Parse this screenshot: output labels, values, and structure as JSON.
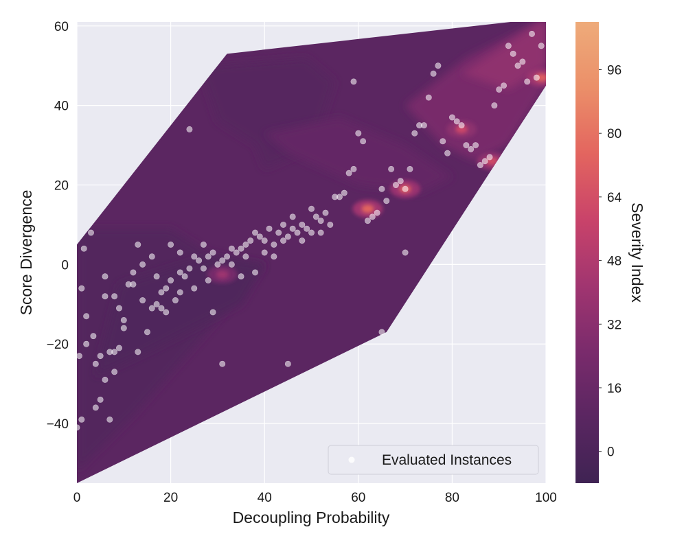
{
  "chart_data": {
    "type": "scatter",
    "overlay": "filled-contour",
    "xlabel": "Decoupling Probability",
    "ylabel": "Score Divergence",
    "colorbar_label": "Severity Index",
    "xlim": [
      0,
      100
    ],
    "ylim": [
      -55,
      61
    ],
    "xticks": [
      0,
      20,
      40,
      60,
      80,
      100
    ],
    "yticks": [
      -40,
      -20,
      0,
      20,
      40,
      60
    ],
    "colorbar_range": [
      -8,
      108
    ],
    "colorbar_ticks": [
      0,
      16,
      32,
      48,
      64,
      80,
      96
    ],
    "colorbar_stops": [
      "#3f2353",
      "#5a2661",
      "#7a2b6c",
      "#a13570",
      "#c9436a",
      "#e3655f",
      "#eb8f69",
      "#eeab7a"
    ],
    "grid": true,
    "legend": {
      "label": "Evaluated Instances",
      "location": "lower-right"
    },
    "hull": [
      [
        0,
        -55
      ],
      [
        0,
        5
      ],
      [
        32,
        53
      ],
      [
        100,
        62
      ],
      [
        100,
        45
      ],
      [
        66,
        -17
      ]
    ],
    "contour_regions": [
      {
        "level": 4,
        "points": [
          [
            0,
            9
          ],
          [
            20,
            9
          ],
          [
            28,
            3
          ],
          [
            40,
            0
          ],
          [
            30,
            -14
          ],
          [
            12,
            -38
          ],
          [
            0,
            -52
          ]
        ]
      },
      {
        "level": 2,
        "points": [
          [
            9,
            -5
          ],
          [
            28,
            2
          ],
          [
            40,
            0
          ],
          [
            35,
            -10
          ],
          [
            15,
            -22
          ],
          [
            4,
            -28
          ]
        ]
      },
      {
        "level": 6,
        "points": [
          [
            26,
            50
          ],
          [
            49,
            52
          ],
          [
            55,
            46
          ],
          [
            52,
            35
          ],
          [
            48,
            28
          ],
          [
            40,
            24
          ],
          [
            38,
            30
          ],
          [
            30,
            36
          ]
        ]
      },
      {
        "level": 14,
        "points": [
          [
            40,
            33
          ],
          [
            56,
            37
          ],
          [
            70,
            30
          ],
          [
            80,
            22
          ],
          [
            73,
            18
          ],
          [
            60,
            20
          ],
          [
            45,
            28
          ]
        ]
      },
      {
        "level": 24,
        "points": [
          [
            70,
            40
          ],
          [
            83,
            52
          ],
          [
            100,
            62
          ],
          [
            100,
            45
          ],
          [
            92,
            30
          ],
          [
            85,
            26
          ],
          [
            78,
            30
          ]
        ]
      },
      {
        "level": 34,
        "points": [
          [
            82,
            48
          ],
          [
            100,
            62
          ],
          [
            100,
            50
          ],
          [
            92,
            44
          ]
        ]
      }
    ],
    "hotspots": [
      {
        "x": 62,
        "y": 14,
        "value": 75
      },
      {
        "x": 70,
        "y": 19,
        "value": 70
      },
      {
        "x": 82,
        "y": 34,
        "value": 60
      },
      {
        "x": 88.5,
        "y": 26,
        "value": 62
      },
      {
        "x": 99,
        "y": 47,
        "value": 72
      },
      {
        "x": 31,
        "y": -2.5,
        "value": 40
      }
    ],
    "points": [
      [
        0,
        -41
      ],
      [
        0.5,
        -23
      ],
      [
        1,
        -39
      ],
      [
        1,
        -6
      ],
      [
        1.5,
        4
      ],
      [
        2,
        -20
      ],
      [
        2,
        -13
      ],
      [
        3,
        8
      ],
      [
        3.5,
        -18
      ],
      [
        4,
        -25
      ],
      [
        4,
        -36
      ],
      [
        5,
        -34
      ],
      [
        5,
        -23
      ],
      [
        6,
        -8
      ],
      [
        6,
        -29
      ],
      [
        7,
        -22
      ],
      [
        7,
        -39
      ],
      [
        8,
        -27
      ],
      [
        8,
        -22
      ],
      [
        9,
        -21
      ],
      [
        9,
        -11
      ],
      [
        10,
        -16
      ],
      [
        11,
        -5
      ],
      [
        12,
        -2
      ],
      [
        13,
        -22
      ],
      [
        13,
        5
      ],
      [
        14,
        -9
      ],
      [
        15,
        -17
      ],
      [
        16,
        -11
      ],
      [
        17,
        -10
      ],
      [
        18,
        -7
      ],
      [
        19,
        -6
      ],
      [
        19,
        -12
      ],
      [
        20,
        -4
      ],
      [
        21,
        -9
      ],
      [
        22,
        -2
      ],
      [
        22,
        3
      ],
      [
        23,
        -3
      ],
      [
        24,
        -1
      ],
      [
        25,
        2
      ],
      [
        26,
        1
      ],
      [
        27,
        -1
      ],
      [
        28,
        2
      ],
      [
        29,
        3
      ],
      [
        30,
        0
      ],
      [
        31,
        1
      ],
      [
        32,
        2
      ],
      [
        33,
        4
      ],
      [
        34,
        3
      ],
      [
        35,
        4
      ],
      [
        36,
        5
      ],
      [
        37,
        6
      ],
      [
        38,
        8
      ],
      [
        39,
        7
      ],
      [
        40,
        6
      ],
      [
        41,
        9
      ],
      [
        42,
        5
      ],
      [
        43,
        8
      ],
      [
        44,
        10
      ],
      [
        45,
        7
      ],
      [
        46,
        9
      ],
      [
        47,
        8
      ],
      [
        48,
        10
      ],
      [
        49,
        9
      ],
      [
        50,
        8
      ],
      [
        51,
        12
      ],
      [
        52,
        11
      ],
      [
        53,
        13
      ],
      [
        55,
        17
      ],
      [
        56,
        17
      ],
      [
        57,
        18
      ],
      [
        58,
        23
      ],
      [
        59,
        24
      ],
      [
        60,
        33
      ],
      [
        61,
        31
      ],
      [
        62,
        11
      ],
      [
        63,
        12
      ],
      [
        64,
        13
      ],
      [
        65,
        19
      ],
      [
        65,
        -17
      ],
      [
        66,
        16
      ],
      [
        67,
        24
      ],
      [
        68,
        20
      ],
      [
        69,
        21
      ],
      [
        70,
        3
      ],
      [
        70,
        19
      ],
      [
        71,
        24
      ],
      [
        72,
        33
      ],
      [
        73,
        35
      ],
      [
        74,
        35
      ],
      [
        75,
        42
      ],
      [
        76,
        48
      ],
      [
        77,
        50
      ],
      [
        78,
        31
      ],
      [
        79,
        28
      ],
      [
        80,
        37
      ],
      [
        81,
        36
      ],
      [
        82,
        35
      ],
      [
        83,
        30
      ],
      [
        84,
        29
      ],
      [
        85,
        30
      ],
      [
        86,
        25
      ],
      [
        87,
        26
      ],
      [
        88,
        27
      ],
      [
        89,
        40
      ],
      [
        90,
        44
      ],
      [
        91,
        45
      ],
      [
        92,
        55
      ],
      [
        93,
        53
      ],
      [
        94,
        50
      ],
      [
        95,
        51
      ],
      [
        96,
        46
      ],
      [
        97,
        58
      ],
      [
        98,
        47
      ],
      [
        99,
        55
      ],
      [
        24,
        34
      ],
      [
        59,
        46
      ],
      [
        45,
        -25
      ],
      [
        29,
        -12
      ],
      [
        31,
        -25
      ],
      [
        18,
        -11
      ],
      [
        10,
        -14
      ],
      [
        8,
        -8
      ],
      [
        14,
        0
      ],
      [
        6,
        -3
      ],
      [
        25,
        -6
      ],
      [
        35,
        -3
      ],
      [
        38,
        -2
      ],
      [
        42,
        2
      ],
      [
        20,
        5
      ],
      [
        16,
        2
      ],
      [
        12,
        -5
      ],
      [
        27,
        5
      ],
      [
        33,
        0
      ],
      [
        22,
        -7
      ],
      [
        17,
        -3
      ],
      [
        28,
        -4
      ],
      [
        36,
        2
      ],
      [
        40,
        3
      ],
      [
        44,
        6
      ],
      [
        48,
        6
      ],
      [
        52,
        8
      ],
      [
        46,
        12
      ],
      [
        50,
        14
      ],
      [
        54,
        10
      ]
    ]
  }
}
